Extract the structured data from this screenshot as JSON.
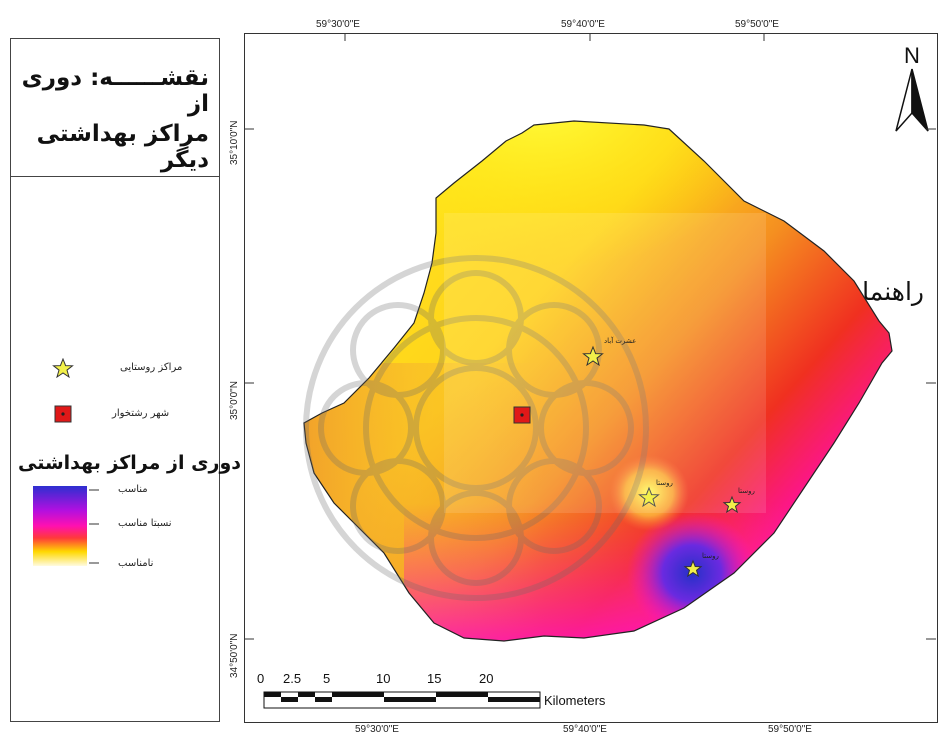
{
  "title": {
    "line1": "نقشــــــه: دوری از",
    "line2": "مراکز بهداشتی دیگر"
  },
  "legend": {
    "heading": "راهنمای نقشه",
    "symbols": [
      {
        "icon": "star-icon",
        "label": "مراکز روستایی"
      },
      {
        "icon": "square-icon",
        "label": "شهر رشتخوار"
      }
    ],
    "ramp_title": "دوری از مراکز بهداشتی",
    "ramp_labels": [
      "مناسب",
      "نسبتا مناسب",
      "نامناسب"
    ],
    "ramp_colors": [
      "#3a2fd6",
      "#ff00d0",
      "#ffe600",
      "#fffbe0"
    ]
  },
  "grid": {
    "top": [
      "59°30'0\"E",
      "59°40'0\"E",
      "59°50'0\"E"
    ],
    "bottom": [
      "59°30'0\"E",
      "59°40'0\"E",
      "59°50'0\"E"
    ],
    "left": [
      "35°10'0\"N",
      "35°0'0\"N",
      "34°50'0\"N"
    ]
  },
  "north": {
    "label": "N"
  },
  "scalebar": {
    "ticks": [
      "0",
      "2.5",
      "5",
      "10",
      "15",
      "20"
    ],
    "unit": "Kilometers"
  },
  "places": [
    {
      "name": "عشرت آباد",
      "type": "village"
    },
    {
      "name": "رشتخوار",
      "type": "city"
    },
    {
      "name": "روستا",
      "type": "village"
    },
    {
      "name": "روستا",
      "type": "village"
    },
    {
      "name": "روستا",
      "type": "village"
    }
  ],
  "colors": {
    "suitable": "#3a2fd6",
    "medium": "#ff00d0",
    "poor": "#ffe600",
    "red": "#e8102a",
    "orange": "#f07a1a"
  }
}
